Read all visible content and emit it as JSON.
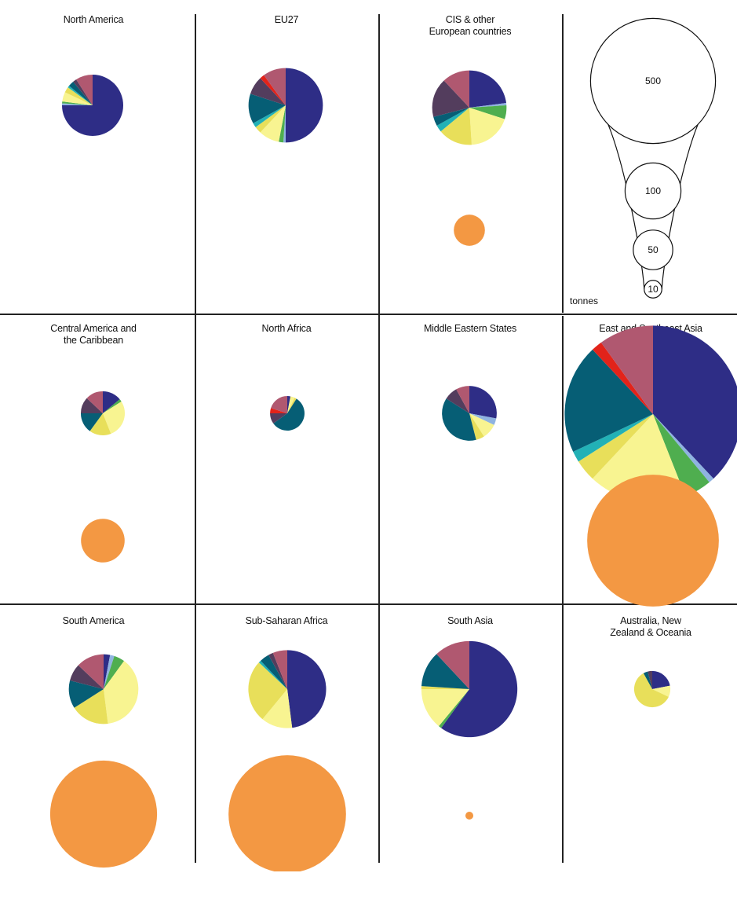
{
  "chart_data": {
    "type": "pie",
    "scale_unit": "tonnes",
    "scale_legend": [
      500,
      100,
      50,
      10
    ],
    "colors": {
      "navy": "#2e2d86",
      "lightblue": "#8fb3e0",
      "green": "#4fae4f",
      "paleyellow": "#f8f491",
      "yellow": "#e8df5a",
      "cyan": "#22b1b6",
      "teal": "#065e75",
      "darkmaroon": "#533d5d",
      "red": "#e2231a",
      "rose": "#b05870",
      "orange": "#f39843"
    },
    "panels": [
      {
        "title": "North America",
        "total": 120,
        "slices": [
          {
            "color": "navy",
            "value": 0.75
          },
          {
            "color": "lightblue",
            "value": 0.01
          },
          {
            "color": "green",
            "value": 0.01
          },
          {
            "color": "paleyellow",
            "value": 0.05
          },
          {
            "color": "yellow",
            "value": 0.03
          },
          {
            "color": "cyan",
            "value": 0.01
          },
          {
            "color": "teal",
            "value": 0.03
          },
          {
            "color": "darkmaroon",
            "value": 0.02
          },
          {
            "color": "rose",
            "value": 0.09
          }
        ],
        "orange": 0
      },
      {
        "title": "EU27",
        "total": 177,
        "slices": [
          {
            "color": "navy",
            "value": 0.5
          },
          {
            "color": "lightblue",
            "value": 0.01
          },
          {
            "color": "green",
            "value": 0.02
          },
          {
            "color": "paleyellow",
            "value": 0.09
          },
          {
            "color": "yellow",
            "value": 0.03
          },
          {
            "color": "cyan",
            "value": 0.02
          },
          {
            "color": "teal",
            "value": 0.13
          },
          {
            "color": "darkmaroon",
            "value": 0.08
          },
          {
            "color": "red",
            "value": 0.02
          },
          {
            "color": "rose",
            "value": 0.1
          }
        ],
        "orange": 0
      },
      {
        "title": "CIS & other\nEuropean countries",
        "total": 177,
        "slices": [
          {
            "color": "navy",
            "value": 0.23
          },
          {
            "color": "lightblue",
            "value": 0.01
          },
          {
            "color": "green",
            "value": 0.06
          },
          {
            "color": "paleyellow",
            "value": 0.19
          },
          {
            "color": "yellow",
            "value": 0.15
          },
          {
            "color": "cyan",
            "value": 0.03
          },
          {
            "color": "teal",
            "value": 0.04
          },
          {
            "color": "darkmaroon",
            "value": 0.17
          },
          {
            "color": "rose",
            "value": 0.12
          }
        ],
        "orange": 31
      },
      {
        "title": "Central America and\nthe Caribbean",
        "total": 62,
        "slices": [
          {
            "color": "navy",
            "value": 0.14
          },
          {
            "color": "green",
            "value": 0.02
          },
          {
            "color": "paleyellow",
            "value": 0.28
          },
          {
            "color": "yellow",
            "value": 0.16
          },
          {
            "color": "teal",
            "value": 0.15
          },
          {
            "color": "darkmaroon",
            "value": 0.12
          },
          {
            "color": "rose",
            "value": 0.13
          }
        ],
        "orange": 61
      },
      {
        "title": "North Africa",
        "total": 38,
        "slices": [
          {
            "color": "navy",
            "value": 0.03
          },
          {
            "color": "paleyellow",
            "value": 0.04
          },
          {
            "color": "yellow",
            "value": 0.02
          },
          {
            "color": "teal",
            "value": 0.56
          },
          {
            "color": "darkmaroon",
            "value": 0.1
          },
          {
            "color": "red",
            "value": 0.05
          },
          {
            "color": "rose",
            "value": 0.2
          }
        ],
        "orange": 0
      },
      {
        "title": "Middle Eastern States",
        "total": 96,
        "slices": [
          {
            "color": "navy",
            "value": 0.28
          },
          {
            "color": "lightblue",
            "value": 0.04
          },
          {
            "color": "paleyellow",
            "value": 0.09
          },
          {
            "color": "yellow",
            "value": 0.05
          },
          {
            "color": "teal",
            "value": 0.38
          },
          {
            "color": "darkmaroon",
            "value": 0.08
          },
          {
            "color": "rose",
            "value": 0.08
          }
        ],
        "orange": 0
      },
      {
        "title": "East and Southeast Asia",
        "total": 1000,
        "slices": [
          {
            "color": "navy",
            "value": 0.38
          },
          {
            "color": "lightblue",
            "value": 0.01
          },
          {
            "color": "green",
            "value": 0.05
          },
          {
            "color": "paleyellow",
            "value": 0.18
          },
          {
            "color": "yellow",
            "value": 0.04
          },
          {
            "color": "cyan",
            "value": 0.02
          },
          {
            "color": "teal",
            "value": 0.2
          },
          {
            "color": "red",
            "value": 0.02
          },
          {
            "color": "rose",
            "value": 0.1
          }
        ],
        "orange": 555
      },
      {
        "title": "South America",
        "total": 155,
        "slices": [
          {
            "color": "navy",
            "value": 0.03
          },
          {
            "color": "lightblue",
            "value": 0.02
          },
          {
            "color": "green",
            "value": 0.05
          },
          {
            "color": "paleyellow",
            "value": 0.38
          },
          {
            "color": "yellow",
            "value": 0.18
          },
          {
            "color": "teal",
            "value": 0.13
          },
          {
            "color": "darkmaroon",
            "value": 0.08
          },
          {
            "color": "rose",
            "value": 0.13
          }
        ],
        "orange": 366
      },
      {
        "title": "Sub-Saharan Africa",
        "total": 194,
        "slices": [
          {
            "color": "navy",
            "value": 0.48
          },
          {
            "color": "paleyellow",
            "value": 0.13
          },
          {
            "color": "yellow",
            "value": 0.26
          },
          {
            "color": "cyan",
            "value": 0.01
          },
          {
            "color": "teal",
            "value": 0.04
          },
          {
            "color": "darkmaroon",
            "value": 0.02
          },
          {
            "color": "rose",
            "value": 0.06
          }
        ],
        "orange": 442
      },
      {
        "title": "South Asia",
        "total": 295,
        "slices": [
          {
            "color": "navy",
            "value": 0.6
          },
          {
            "color": "green",
            "value": 0.01
          },
          {
            "color": "paleyellow",
            "value": 0.14
          },
          {
            "color": "yellow",
            "value": 0.01
          },
          {
            "color": "teal",
            "value": 0.12
          },
          {
            "color": "rose",
            "value": 0.12
          }
        ],
        "orange": 2
      },
      {
        "title": "Australia, New\nZealand & Oceania",
        "total": 42,
        "slices": [
          {
            "color": "navy",
            "value": 0.22
          },
          {
            "color": "paleyellow",
            "value": 0.1
          },
          {
            "color": "yellow",
            "value": 0.6
          },
          {
            "color": "teal",
            "value": 0.04
          },
          {
            "color": "darkmaroon",
            "value": 0.04
          }
        ],
        "orange": 0
      }
    ]
  }
}
